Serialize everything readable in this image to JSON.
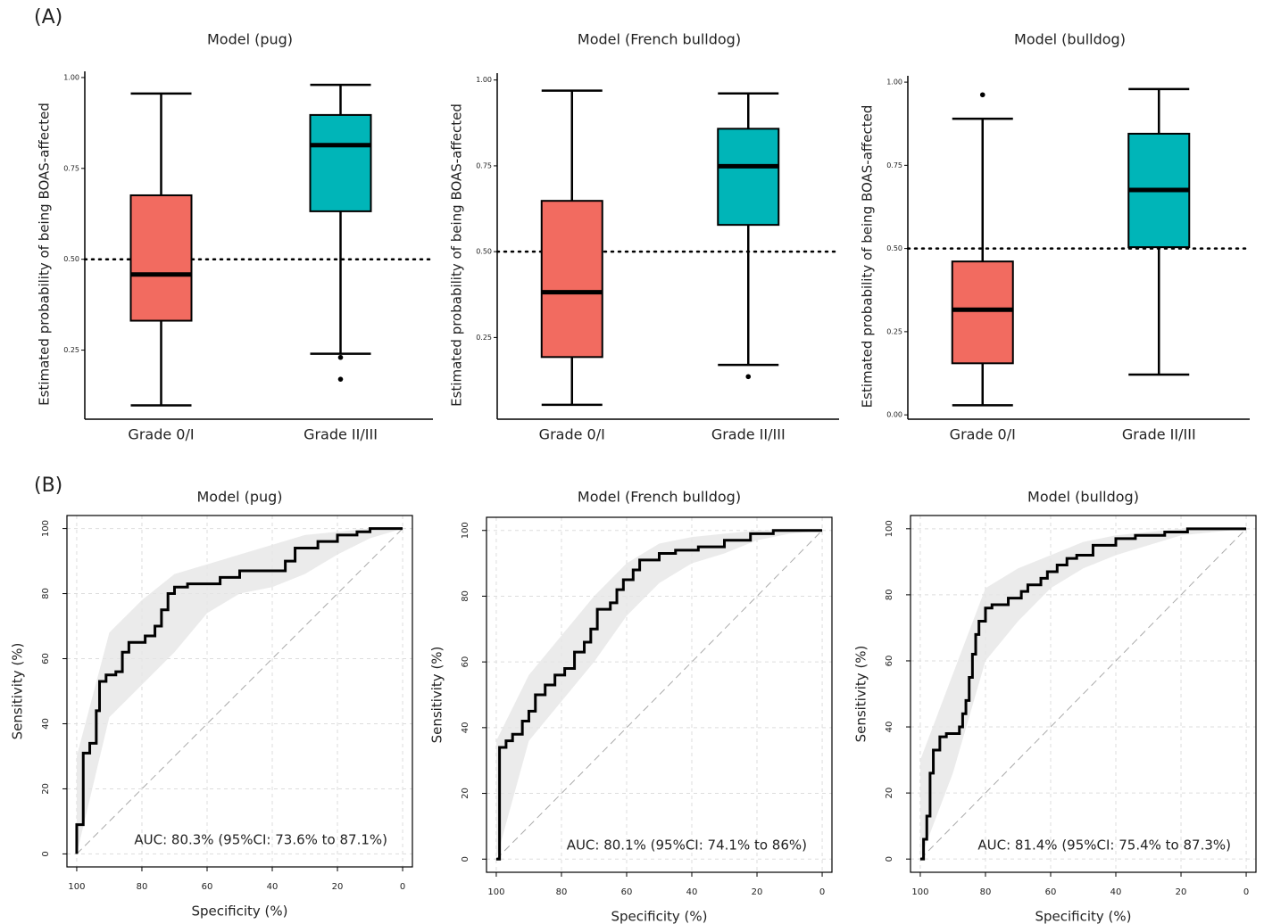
{
  "panels": [
    "(A)",
    "(B)"
  ],
  "chart_data": [
    {
      "type": "box",
      "title": "Model (pug)",
      "y_label": "Estimated probability of being BOAS-affected",
      "categories": [
        "Grade 0/I",
        "Grade II/III"
      ],
      "boxes": [
        {
          "low": 0.098,
          "q1": 0.331,
          "median": 0.458,
          "q3": 0.676,
          "high": 0.956,
          "outliers": [],
          "color": "#f26b60"
        },
        {
          "low": 0.24,
          "q1": 0.632,
          "median": 0.814,
          "q3": 0.897,
          "high": 0.98,
          "outliers": [
            0.23,
            0.17
          ],
          "color": "#00b5b8"
        }
      ],
      "hline": 0.5,
      "ylim": [
        0.06,
        1.017
      ],
      "yticks": [
        {
          "value": 0.25,
          "label": "0.25"
        },
        {
          "value": 0.5,
          "label": "0.50"
        },
        {
          "value": 0.75,
          "label": "0.75"
        },
        {
          "value": 1,
          "label": "1.00"
        }
      ]
    },
    {
      "type": "box",
      "title": "Model (French bulldog)",
      "y_label": "Estimated probability of being BOAS-affected",
      "categories": [
        "Grade 0/I",
        "Grade II/III"
      ],
      "boxes": [
        {
          "low": 0.054,
          "q1": 0.193,
          "median": 0.382,
          "q3": 0.648,
          "high": 0.969,
          "outliers": [],
          "color": "#f26b60"
        },
        {
          "low": 0.17,
          "q1": 0.578,
          "median": 0.749,
          "q3": 0.858,
          "high": 0.961,
          "outliers": [
            0.136
          ],
          "color": "#00b5b8"
        }
      ],
      "hline": 0.5,
      "ylim": [
        0.012,
        1.02
      ],
      "yticks": [
        {
          "value": 0.25,
          "label": "0.25"
        },
        {
          "value": 0.5,
          "label": "0.50"
        },
        {
          "value": 0.75,
          "label": "0.75"
        },
        {
          "value": 1,
          "label": "1.00"
        }
      ]
    },
    {
      "type": "box",
      "title": "Model (bulldog)",
      "y_label": "Estimated probability of being BOAS-affected",
      "categories": [
        "Grade 0/I",
        "Grade II/III"
      ],
      "boxes": [
        {
          "low": 0.029,
          "q1": 0.155,
          "median": 0.316,
          "q3": 0.461,
          "high": 0.89,
          "outliers": [
            0.962
          ],
          "color": "#f26b60"
        },
        {
          "low": 0.121,
          "q1": 0.504,
          "median": 0.676,
          "q3": 0.845,
          "high": 0.979,
          "outliers": [],
          "color": "#00b5b8"
        }
      ],
      "hline": 0.5,
      "ylim": [
        -0.013,
        1.019
      ],
      "yticks": [
        {
          "value": 0,
          "label": "0.00"
        },
        {
          "value": 0.25,
          "label": "0.25"
        },
        {
          "value": 0.5,
          "label": "0.50"
        },
        {
          "value": 0.75,
          "label": "0.75"
        },
        {
          "value": 1,
          "label": "1.00"
        }
      ]
    },
    {
      "type": "roc",
      "title": "Model (pug)",
      "x_label": "Specificity (%)",
      "y_label": "Sensitivity (%)",
      "annotation": "AUC: 80.3% (95%CI: 73.6% to 87.1%)",
      "color": "#000000",
      "grid": true,
      "x": [
        100,
        100,
        98,
        98,
        96,
        96,
        94,
        94,
        93,
        93,
        91,
        91,
        88,
        88,
        86,
        86,
        84,
        84,
        79,
        79,
        76,
        76,
        74,
        74,
        72,
        72,
        70,
        70,
        66,
        66,
        56,
        56,
        50,
        50,
        36,
        36,
        33,
        33,
        26,
        26,
        20,
        20,
        14,
        14,
        10,
        10,
        0
      ],
      "values": [
        0,
        9,
        9,
        31,
        31,
        34,
        34,
        44,
        44,
        53,
        53,
        55,
        55,
        56,
        56,
        62,
        62,
        65,
        65,
        67,
        67,
        70,
        70,
        75,
        75,
        80,
        80,
        82,
        82,
        83,
        83,
        85,
        85,
        87,
        87,
        90,
        90,
        94,
        94,
        96,
        96,
        98,
        98,
        99,
        99,
        100,
        100
      ],
      "band": {
        "x": [
          100,
          90,
          80,
          70,
          60,
          50,
          40,
          30,
          20,
          10,
          0
        ],
        "lower": [
          0,
          42,
          52,
          62,
          74,
          80,
          82,
          86,
          92,
          97,
          100
        ],
        "upper": [
          30,
          68,
          78,
          86,
          89,
          92,
          95,
          98,
          99,
          100,
          100
        ]
      },
      "xlim": [
        103,
        -3
      ],
      "ylim": [
        -4,
        104
      ],
      "xticks": [
        100,
        80,
        60,
        40,
        20,
        0
      ],
      "yticks": [
        0,
        20,
        40,
        60,
        80,
        100
      ]
    },
    {
      "type": "roc",
      "title": "Model (French bulldog)",
      "x_label": "Specificity (%)",
      "y_label": "Sensitivity (%)",
      "annotation": "AUC: 80.1% (95%CI: 74.1% to 86%)",
      "color": "#000000",
      "grid": true,
      "x": [
        100,
        99,
        99,
        97,
        97,
        95,
        95,
        92,
        92,
        90,
        90,
        88,
        88,
        85,
        85,
        82,
        82,
        79,
        79,
        76,
        76,
        73,
        73,
        71,
        71,
        69,
        69,
        65,
        65,
        63,
        63,
        61,
        61,
        58,
        58,
        56,
        56,
        50,
        50,
        45,
        45,
        38,
        38,
        30,
        30,
        22,
        22,
        15,
        15,
        0
      ],
      "values": [
        0,
        0,
        34,
        34,
        36,
        36,
        38,
        38,
        42,
        42,
        45,
        45,
        50,
        50,
        53,
        53,
        56,
        56,
        58,
        58,
        63,
        63,
        66,
        66,
        70,
        70,
        76,
        76,
        78,
        78,
        82,
        82,
        85,
        85,
        88,
        88,
        91,
        91,
        93,
        93,
        94,
        94,
        95,
        95,
        97,
        97,
        99,
        99,
        100,
        100
      ],
      "band": {
        "x": [
          100,
          90,
          80,
          70,
          60,
          50,
          40,
          30,
          20,
          10,
          0
        ],
        "lower": [
          0,
          36,
          48,
          60,
          74,
          84,
          90,
          93,
          97,
          99,
          100
        ],
        "upper": [
          36,
          56,
          68,
          80,
          90,
          96,
          98,
          99,
          100,
          100,
          100
        ]
      },
      "xlim": [
        103,
        -3
      ],
      "ylim": [
        -4,
        104
      ],
      "xticks": [
        100,
        80,
        60,
        40,
        20,
        0
      ],
      "yticks": [
        0,
        20,
        40,
        60,
        80,
        100
      ]
    },
    {
      "type": "roc",
      "title": "Model (bulldog)",
      "x_label": "Specificity (%)",
      "y_label": "Sensitivity (%)",
      "annotation": "AUC: 81.4% (95%CI: 75.4% to 87.3%)",
      "color": "#000000",
      "grid": true,
      "x": [
        100,
        99,
        99,
        98,
        98,
        97,
        97,
        96,
        96,
        94,
        94,
        92,
        92,
        88,
        88,
        87,
        87,
        86,
        86,
        85,
        85,
        84,
        84,
        83,
        83,
        82,
        82,
        80,
        80,
        78,
        78,
        73,
        73,
        69,
        69,
        67,
        67,
        63,
        63,
        61,
        61,
        58,
        58,
        55,
        55,
        52,
        52,
        47,
        47,
        40,
        40,
        34,
        34,
        25,
        25,
        18,
        18,
        0
      ],
      "values": [
        0,
        0,
        6,
        6,
        13,
        13,
        26,
        26,
        33,
        33,
        37,
        37,
        38,
        38,
        40,
        40,
        44,
        44,
        48,
        48,
        55,
        55,
        62,
        62,
        68,
        68,
        72,
        72,
        76,
        76,
        77,
        77,
        79,
        79,
        81,
        81,
        83,
        83,
        85,
        85,
        87,
        87,
        89,
        89,
        91,
        91,
        92,
        92,
        95,
        95,
        97,
        97,
        98,
        98,
        99,
        99,
        100,
        100
      ],
      "band": {
        "x": [
          100,
          90,
          80,
          70,
          60,
          50,
          40,
          30,
          20,
          10,
          0
        ],
        "lower": [
          0,
          26,
          60,
          72,
          82,
          88,
          92,
          95,
          98,
          99,
          100
        ],
        "upper": [
          30,
          56,
          82,
          88,
          92,
          96,
          98,
          99,
          100,
          100,
          100
        ]
      },
      "xlim": [
        103,
        -3
      ],
      "ylim": [
        -4,
        104
      ],
      "xticks": [
        100,
        80,
        60,
        40,
        20,
        0
      ],
      "yticks": [
        0,
        20,
        40,
        60,
        80,
        100
      ]
    }
  ]
}
